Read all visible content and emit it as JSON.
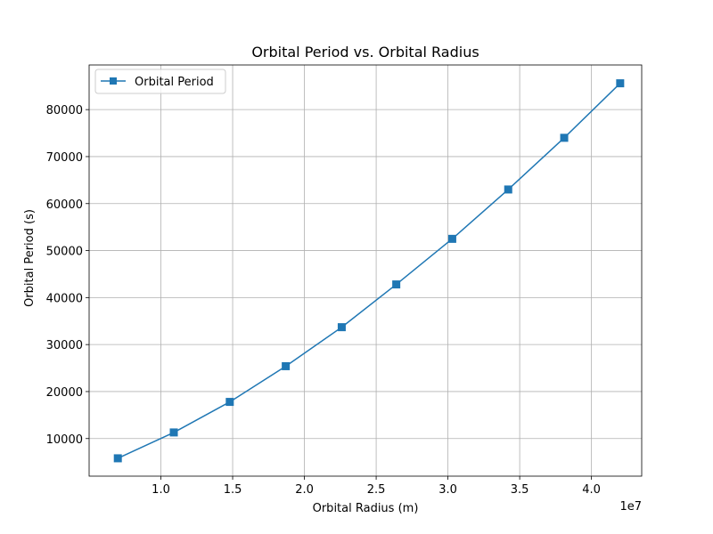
{
  "chart_data": {
    "type": "line",
    "title": "Orbital Period vs. Orbital Radius",
    "xlabel": "Orbital Radius (m)",
    "ylabel": "Orbital Period (s)",
    "x_offset_text": "1e7",
    "xlim": [
      5000000,
      43500000
    ],
    "ylim": [
      2000,
      89500
    ],
    "xticks": [
      10000000,
      15000000,
      20000000,
      25000000,
      30000000,
      35000000,
      40000000
    ],
    "xtick_labels": [
      "1.0",
      "1.5",
      "2.0",
      "2.5",
      "3.0",
      "3.5",
      "4.0"
    ],
    "yticks": [
      10000,
      20000,
      30000,
      40000,
      50000,
      60000,
      70000,
      80000
    ],
    "ytick_labels": [
      "10000",
      "20000",
      "30000",
      "40000",
      "50000",
      "60000",
      "70000",
      "80000"
    ],
    "grid": true,
    "legend_position": "top-left",
    "series": [
      {
        "name": "Orbital Period",
        "color": "#1f77b4",
        "marker": "square",
        "x": [
          7000000,
          10900000,
          14800000,
          18700000,
          22600000,
          26400000,
          30300000,
          34200000,
          38100000,
          42000000
        ],
        "y": [
          5800,
          11300,
          17800,
          25400,
          33700,
          42800,
          52500,
          63000,
          74000,
          85600
        ]
      }
    ]
  }
}
